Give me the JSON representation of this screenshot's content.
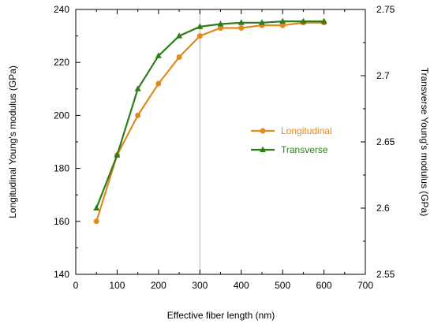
{
  "chart_data": {
    "type": "line",
    "title": "",
    "xlabel": "Effective fiber length (nm)",
    "ylabel_left": "Longitudinal Young's modulus (GPa)",
    "ylabel_right": "Transverse Young's modulus (GPa)",
    "xlim": [
      0,
      700
    ],
    "ylim_left": [
      140,
      240
    ],
    "ylim_right": [
      2.55,
      2.75
    ],
    "xticks": [
      0,
      100,
      200,
      300,
      400,
      500,
      600,
      700
    ],
    "yticks_left": [
      140,
      160,
      180,
      200,
      220,
      240
    ],
    "yticks_right": [
      "2.55",
      "2.6",
      "2.65",
      "2.7",
      "2.75"
    ],
    "grid": false,
    "vertical_reference_line_x": 300,
    "legend_position": "right-middle",
    "series": [
      {
        "name": "Longitudinal",
        "axis": "left",
        "color": "#e08a1e",
        "marker": "circle",
        "x": [
          50,
          100,
          150,
          200,
          250,
          300,
          350,
          400,
          450,
          500,
          550,
          600
        ],
        "y": [
          160,
          185,
          200,
          212,
          222,
          230,
          233,
          233,
          234,
          234,
          235,
          235
        ]
      },
      {
        "name": "Transverse",
        "axis": "right",
        "color": "#2e7d1a",
        "marker": "triangle",
        "x": [
          50,
          100,
          150,
          200,
          250,
          300,
          350,
          400,
          450,
          500,
          550,
          600
        ],
        "y": [
          2.6,
          2.64,
          2.69,
          2.715,
          2.73,
          2.737,
          2.739,
          2.74,
          2.74,
          2.741,
          2.741,
          2.741
        ]
      }
    ]
  }
}
